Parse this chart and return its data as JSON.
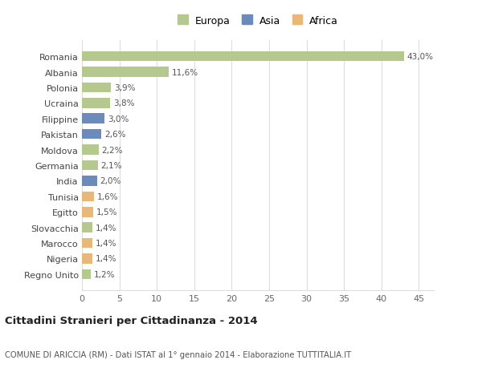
{
  "categories": [
    "Romania",
    "Albania",
    "Polonia",
    "Ucraina",
    "Filippine",
    "Pakistan",
    "Moldova",
    "Germania",
    "India",
    "Tunisia",
    "Egitto",
    "Slovacchia",
    "Marocco",
    "Nigeria",
    "Regno Unito"
  ],
  "values": [
    43.0,
    11.6,
    3.9,
    3.8,
    3.0,
    2.6,
    2.2,
    2.1,
    2.0,
    1.6,
    1.5,
    1.4,
    1.4,
    1.4,
    1.2
  ],
  "labels": [
    "43,0%",
    "11,6%",
    "3,9%",
    "3,8%",
    "3,0%",
    "2,6%",
    "2,2%",
    "2,1%",
    "2,0%",
    "1,6%",
    "1,5%",
    "1,4%",
    "1,4%",
    "1,4%",
    "1,2%"
  ],
  "continents": [
    "Europa",
    "Europa",
    "Europa",
    "Europa",
    "Asia",
    "Asia",
    "Europa",
    "Europa",
    "Asia",
    "Africa",
    "Africa",
    "Europa",
    "Africa",
    "Africa",
    "Europa"
  ],
  "colors": {
    "Europa": "#b5c98e",
    "Asia": "#6b8cba",
    "Africa": "#e8b87a"
  },
  "title": "Cittadini Stranieri per Cittadinanza - 2014",
  "subtitle": "COMUNE DI ARICCIA (RM) - Dati ISTAT al 1° gennaio 2014 - Elaborazione TUTTITALIA.IT",
  "xlim": [
    0,
    47
  ],
  "xticks": [
    0,
    5,
    10,
    15,
    20,
    25,
    30,
    35,
    40,
    45
  ],
  "bg_color": "#ffffff",
  "grid_color": "#dddddd"
}
